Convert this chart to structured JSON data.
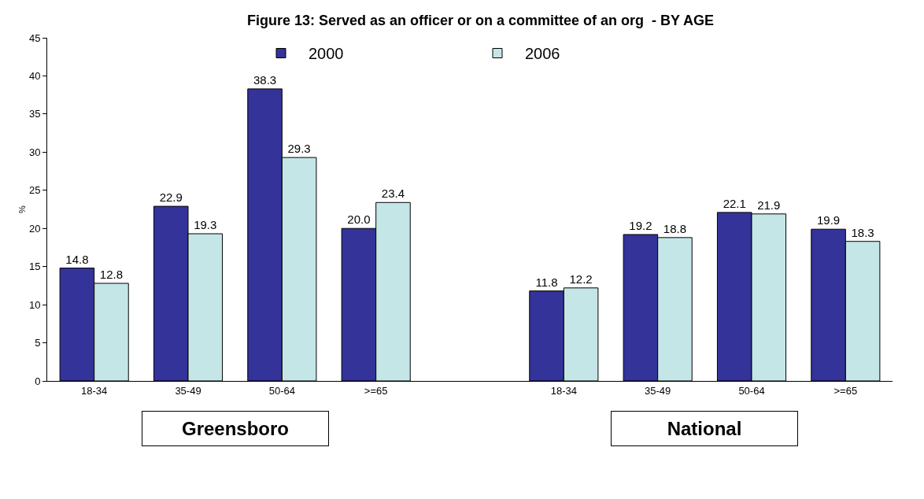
{
  "chart_data": {
    "type": "bar",
    "title": "Figure 13: Served as an officer or on a committee of an org  - BY AGE",
    "ylabel": "%",
    "categories": [
      "18-34",
      "35-49",
      "50-64",
      ">=65",
      null,
      "18-34",
      "35-49",
      "50-64",
      ">=65"
    ],
    "series": [
      {
        "name": "2000",
        "color": "#333399",
        "values": [
          14.8,
          22.9,
          38.3,
          20.0,
          null,
          11.8,
          19.2,
          22.1,
          19.9
        ],
        "value_labels": [
          "14.8",
          "22.9",
          "38.3",
          "20.0",
          null,
          "11.8",
          "19.2",
          "22.1",
          "19.9"
        ]
      },
      {
        "name": "2006",
        "color": "#c4e6e6",
        "values": [
          12.8,
          19.3,
          29.3,
          23.4,
          null,
          12.2,
          18.8,
          21.9,
          18.3
        ],
        "value_labels": [
          "12.8",
          "19.3",
          "29.3",
          "23.4",
          null,
          "12.2",
          "18.8",
          "21.9",
          "18.3"
        ]
      }
    ],
    "annotations": [
      "Greensboro",
      "National"
    ],
    "ylim": [
      0,
      45
    ],
    "yticks": [
      0,
      5,
      10,
      15,
      20,
      25,
      30,
      35,
      40,
      45
    ],
    "grid": false,
    "legend": "top"
  }
}
